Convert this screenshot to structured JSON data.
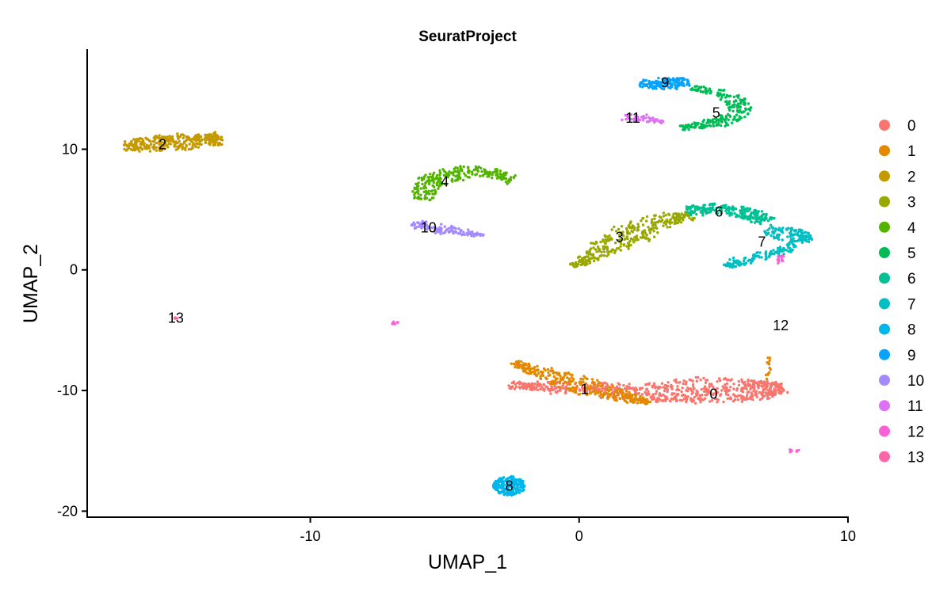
{
  "chart_data": {
    "type": "scatter",
    "title": "SeuratProject",
    "xlabel": "UMAP_1",
    "ylabel": "UMAP_2",
    "xlim": [
      -18.3,
      10
    ],
    "ylim": [
      -20.5,
      18.3
    ],
    "xticks": [
      -10,
      0,
      10
    ],
    "yticks": [
      -20,
      -10,
      0,
      10
    ],
    "grid": false,
    "legend_position": "right",
    "series": [
      {
        "name": "0",
        "color": "#F8766D",
        "centroid": [
          5.0,
          -10.3
        ]
      },
      {
        "name": "1",
        "color": "#E38900",
        "centroid": [
          0.2,
          -9.9
        ]
      },
      {
        "name": "2",
        "color": "#C49A00",
        "centroid": [
          -15.5,
          10.4
        ]
      },
      {
        "name": "3",
        "color": "#99A800",
        "centroid": [
          1.5,
          2.7
        ]
      },
      {
        "name": "4",
        "color": "#53B400",
        "centroid": [
          -5.0,
          7.3
        ]
      },
      {
        "name": "5",
        "color": "#00BC56",
        "centroid": [
          5.1,
          13.0
        ]
      },
      {
        "name": "6",
        "color": "#00C094",
        "centroid": [
          5.2,
          4.8
        ]
      },
      {
        "name": "7",
        "color": "#00BFC4",
        "centroid": [
          6.8,
          2.3
        ]
      },
      {
        "name": "8",
        "color": "#00B6EB",
        "centroid": [
          -2.6,
          -17.9
        ]
      },
      {
        "name": "9",
        "color": "#06A4FF",
        "centroid": [
          3.2,
          15.5
        ]
      },
      {
        "name": "10",
        "color": "#A58AFF",
        "centroid": [
          -5.6,
          3.5
        ]
      },
      {
        "name": "11",
        "color": "#DF70F8",
        "centroid": [
          2.0,
          12.6
        ]
      },
      {
        "name": "12",
        "color": "#FB61D7",
        "centroid": [
          7.5,
          -4.6
        ]
      },
      {
        "name": "13",
        "color": "#FF66A8",
        "centroid": [
          -15.0,
          -4.0
        ]
      }
    ]
  }
}
